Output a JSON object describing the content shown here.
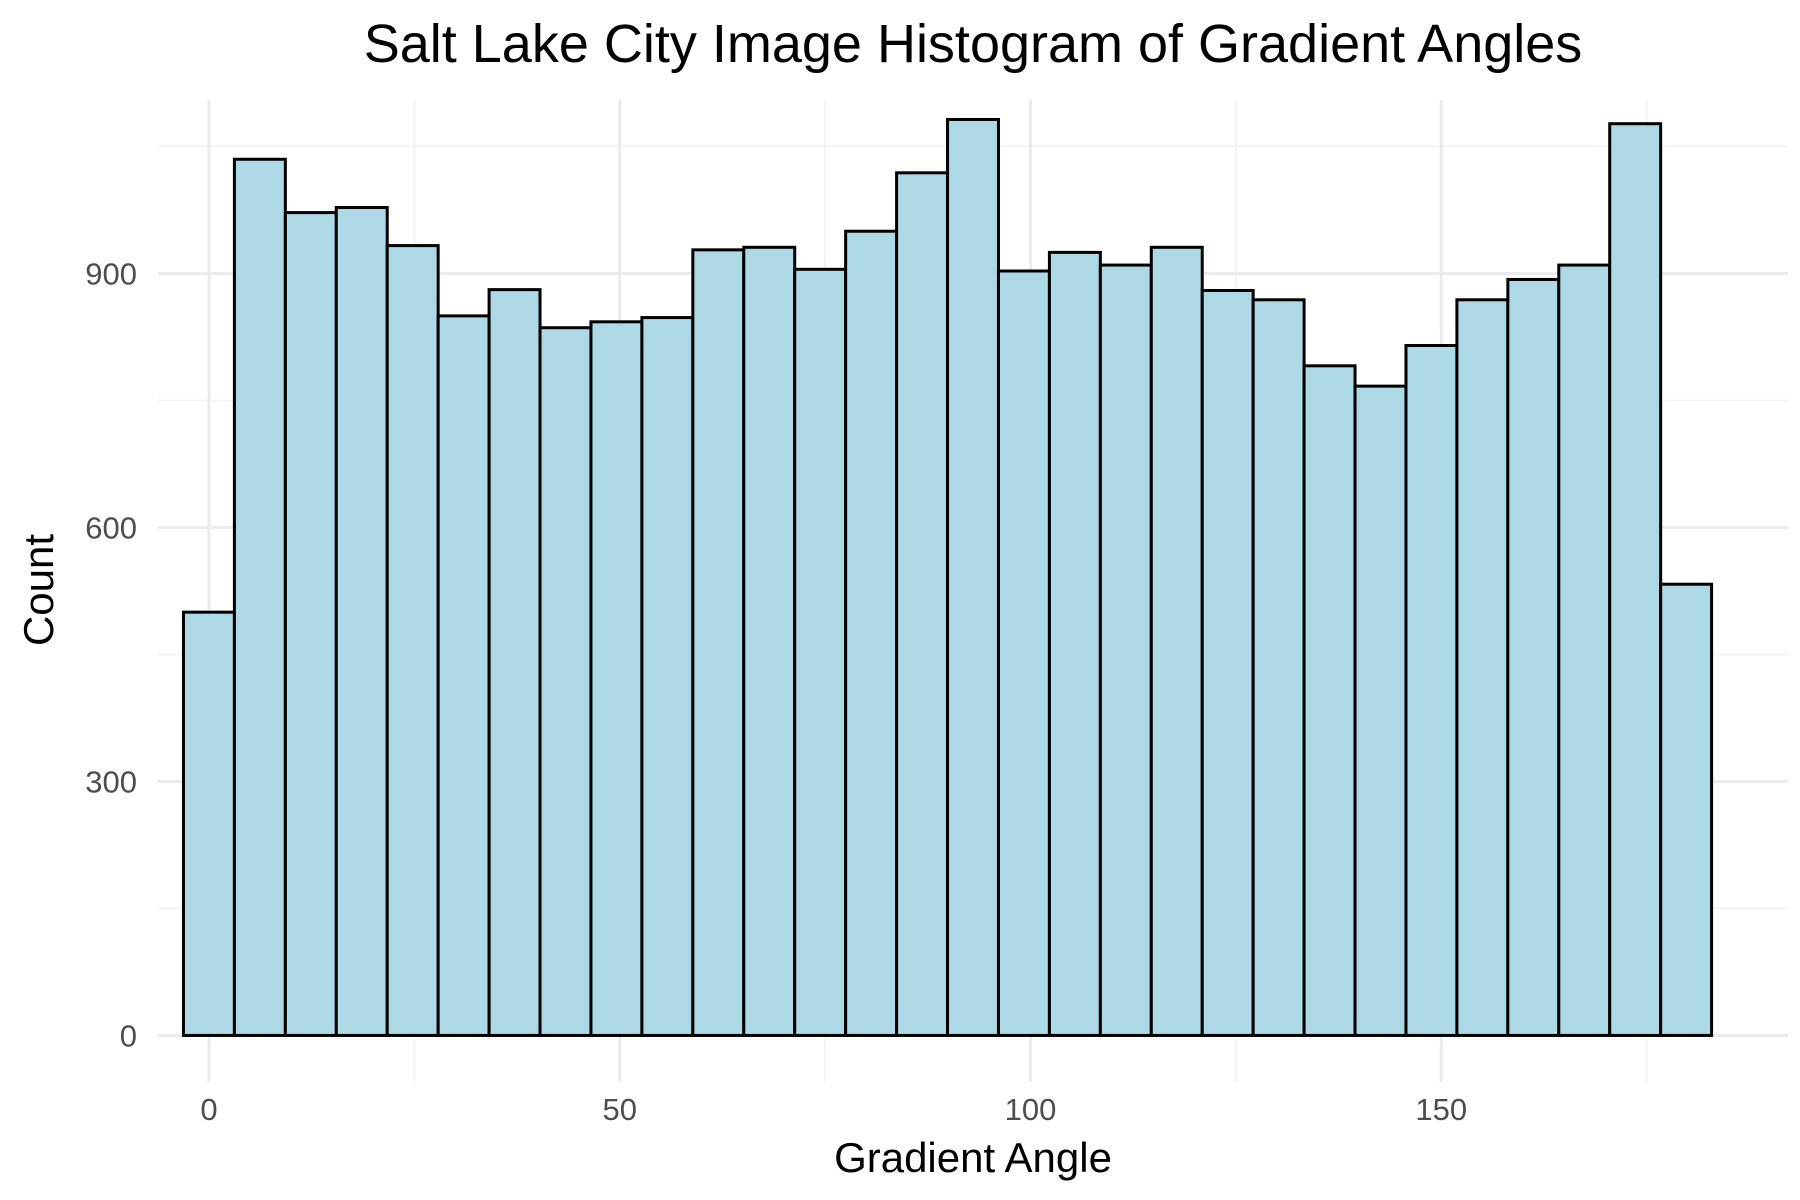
{
  "chart_data": {
    "type": "bar",
    "subtype": "histogram",
    "title": "Salt Lake City Image Histogram of Gradient Angles",
    "xlabel": "Gradient Angle",
    "ylabel": "Count",
    "xlim": [
      -6.2,
      192.2
    ],
    "ylim": [
      -55,
      1105
    ],
    "x_ticks": [
      0,
      50,
      100,
      150
    ],
    "x_tick_labels": [
      "0",
      "50",
      "100",
      "150"
    ],
    "y_ticks": [
      0,
      300,
      600,
      900
    ],
    "y_tick_labels": [
      "0",
      "300",
      "600",
      "900"
    ],
    "bin_width": 6.2,
    "bins": [
      {
        "x_min": -3.1,
        "x_max": 3.1,
        "count": 500
      },
      {
        "x_min": 3.1,
        "x_max": 9.3,
        "count": 1035
      },
      {
        "x_min": 9.3,
        "x_max": 15.5,
        "count": 972
      },
      {
        "x_min": 15.5,
        "x_max": 21.7,
        "count": 978
      },
      {
        "x_min": 21.7,
        "x_max": 27.9,
        "count": 933
      },
      {
        "x_min": 27.9,
        "x_max": 34.1,
        "count": 850
      },
      {
        "x_min": 34.1,
        "x_max": 40.3,
        "count": 881
      },
      {
        "x_min": 40.3,
        "x_max": 46.5,
        "count": 836
      },
      {
        "x_min": 46.5,
        "x_max": 52.7,
        "count": 843
      },
      {
        "x_min": 52.7,
        "x_max": 58.9,
        "count": 848
      },
      {
        "x_min": 58.9,
        "x_max": 65.1,
        "count": 928
      },
      {
        "x_min": 65.1,
        "x_max": 71.3,
        "count": 931
      },
      {
        "x_min": 71.3,
        "x_max": 77.5,
        "count": 905
      },
      {
        "x_min": 77.5,
        "x_max": 83.7,
        "count": 950
      },
      {
        "x_min": 83.7,
        "x_max": 89.9,
        "count": 1019
      },
      {
        "x_min": 89.9,
        "x_max": 96.1,
        "count": 1082
      },
      {
        "x_min": 96.1,
        "x_max": 102.3,
        "count": 903
      },
      {
        "x_min": 102.3,
        "x_max": 108.5,
        "count": 925
      },
      {
        "x_min": 108.5,
        "x_max": 114.7,
        "count": 910
      },
      {
        "x_min": 114.7,
        "x_max": 120.9,
        "count": 931
      },
      {
        "x_min": 120.9,
        "x_max": 127.1,
        "count": 880
      },
      {
        "x_min": 127.1,
        "x_max": 133.3,
        "count": 869
      },
      {
        "x_min": 133.3,
        "x_max": 139.5,
        "count": 791
      },
      {
        "x_min": 139.5,
        "x_max": 145.7,
        "count": 767
      },
      {
        "x_min": 145.7,
        "x_max": 151.9,
        "count": 815
      },
      {
        "x_min": 151.9,
        "x_max": 158.1,
        "count": 869
      },
      {
        "x_min": 158.1,
        "x_max": 164.3,
        "count": 893
      },
      {
        "x_min": 164.3,
        "x_max": 170.5,
        "count": 910
      },
      {
        "x_min": 170.5,
        "x_max": 176.7,
        "count": 1077
      },
      {
        "x_min": 176.7,
        "x_max": 182.9,
        "count": 533
      }
    ],
    "grid": true,
    "legend": "none",
    "colors": {
      "bar_fill": "#add8e6",
      "bar_outline": "#000000",
      "grid_major": "#ebebeb",
      "grid_minor": "#f3f3f3",
      "background": "#ffffff"
    }
  }
}
